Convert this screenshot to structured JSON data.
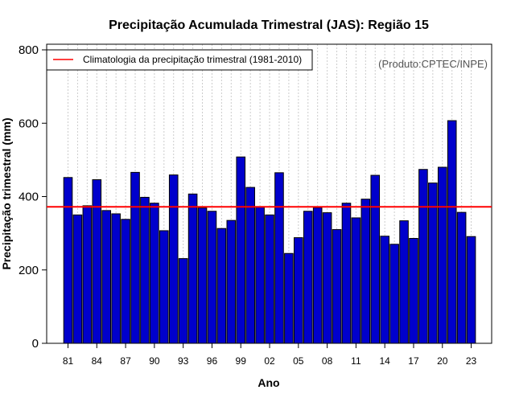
{
  "chart_data": {
    "type": "bar",
    "title": "Precipitação Acumulada Trimestral (JAS): Região 15",
    "xlabel": "Ano",
    "ylabel": "Precipitação trimestral (mm)",
    "ylim": [
      0,
      800
    ],
    "yticks": [
      "0",
      "200",
      "400",
      "600",
      "800"
    ],
    "xtick_labels": [
      "81",
      "84",
      "87",
      "90",
      "93",
      "96",
      "99",
      "02",
      "05",
      "08",
      "11",
      "14",
      "17",
      "20",
      "23"
    ],
    "categories": [
      "1981",
      "1982",
      "1983",
      "1984",
      "1985",
      "1986",
      "1987",
      "1988",
      "1989",
      "1990",
      "1991",
      "1992",
      "1993",
      "1994",
      "1995",
      "1996",
      "1997",
      "1998",
      "1999",
      "2000",
      "2001",
      "2002",
      "2003",
      "2004",
      "2005",
      "2006",
      "2007",
      "2008",
      "2009",
      "2010",
      "2011",
      "2012",
      "2013",
      "2014",
      "2015",
      "2016",
      "2017",
      "2018",
      "2019",
      "2020",
      "2021",
      "2022",
      "2023"
    ],
    "values": [
      452,
      350,
      375,
      446,
      362,
      353,
      338,
      466,
      398,
      382,
      307,
      459,
      231,
      407,
      369,
      360,
      313,
      335,
      508,
      425,
      371,
      350,
      465,
      245,
      288,
      360,
      370,
      356,
      310,
      382,
      342,
      393,
      458,
      292,
      270,
      334,
      286,
      474,
      437,
      480,
      607,
      357,
      291
    ],
    "climatology": 372,
    "legend_label": "Climatologia da precipitação trimestral (1981-2010)",
    "source_note": "(Produto:CPTEC/INPE)",
    "bar_color": "#0000cc",
    "line_color": "#ff0000"
  }
}
